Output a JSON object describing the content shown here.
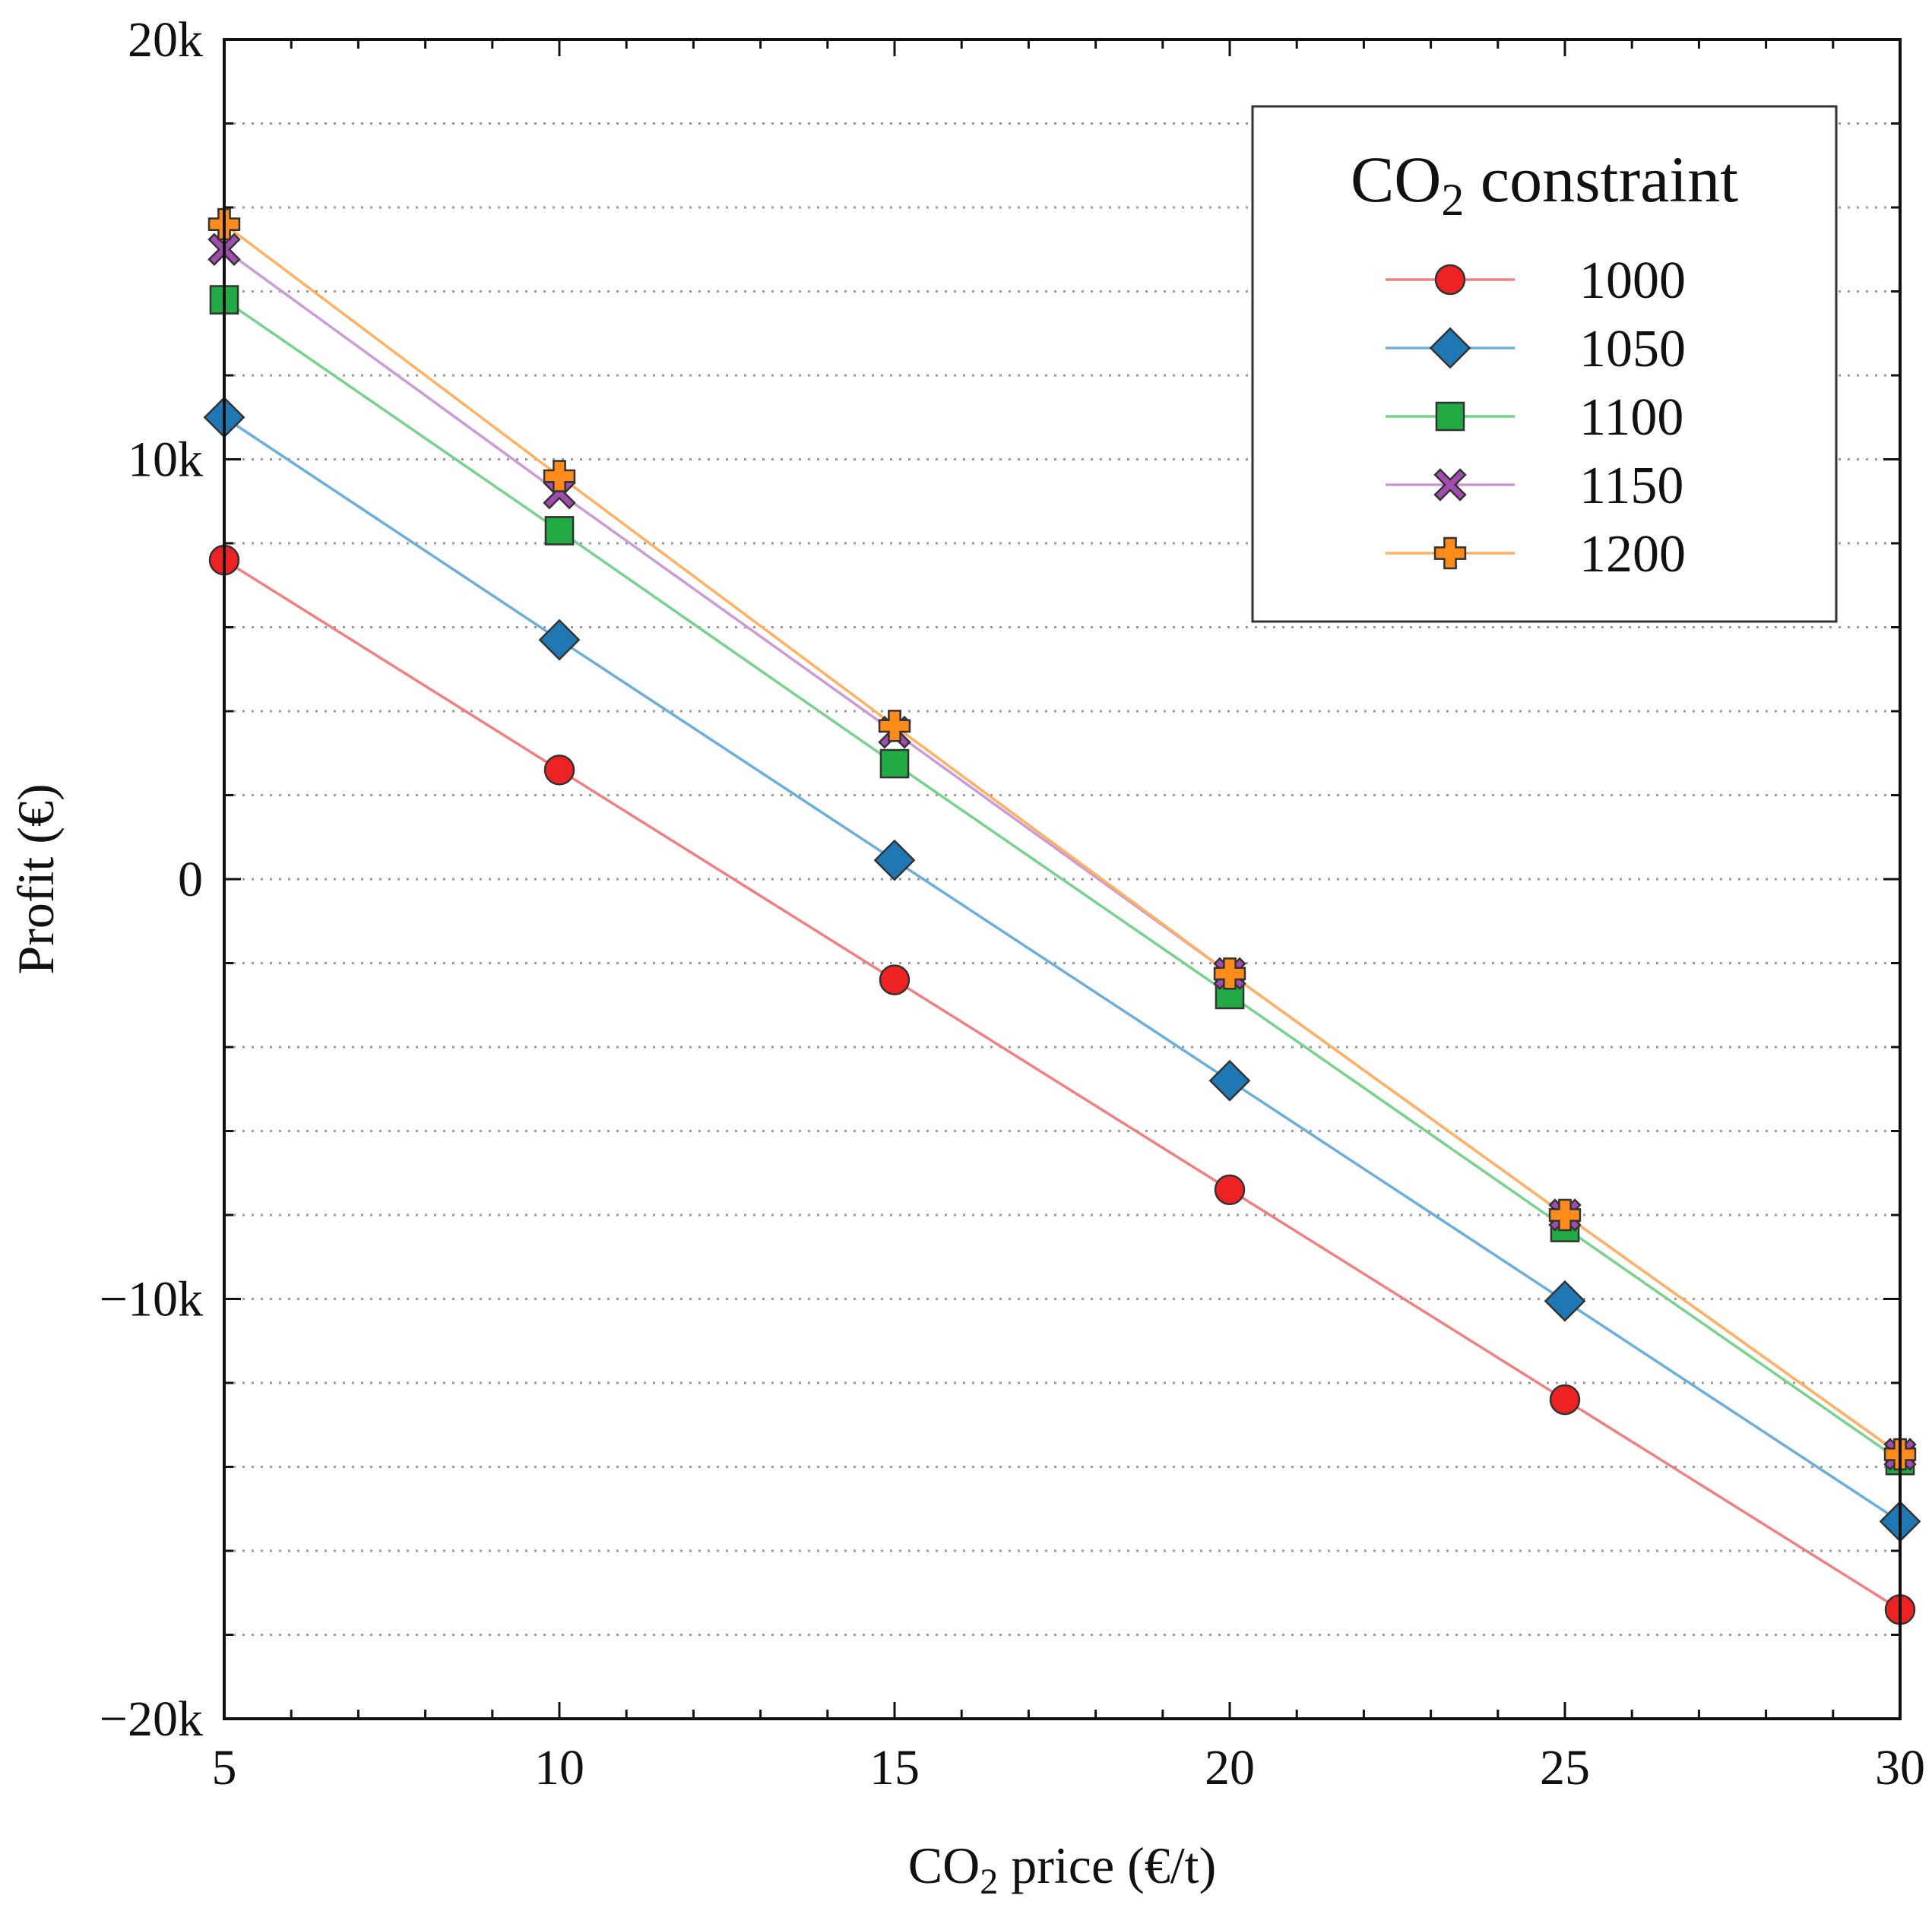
{
  "chart_data": {
    "type": "line",
    "title": "",
    "xlabel": "CO₂ price (€/t)",
    "xlabel_parts": {
      "pre": "CO",
      "sub": "2",
      "post": " price (€/t)"
    },
    "ylabel": "Profit (€)",
    "xlim": [
      5,
      30
    ],
    "ylim": [
      -20000,
      20000
    ],
    "x_ticks": [
      5,
      10,
      15,
      20,
      25,
      30
    ],
    "x_tick_labels": [
      "5",
      "10",
      "15",
      "20",
      "25",
      "30"
    ],
    "y_ticks": [
      -20000,
      -10000,
      0,
      10000,
      20000
    ],
    "y_tick_labels": [
      "−20k",
      "−10k",
      "0",
      "10k",
      "20k"
    ],
    "grid": "horizontal dotted",
    "legend": {
      "title": "CO₂ constraint",
      "title_parts": {
        "pre": "CO",
        "sub": "2",
        "post": " constraint"
      },
      "placement": "top-right"
    },
    "x": [
      5,
      10,
      15,
      20,
      25,
      30
    ],
    "series": [
      {
        "name": "1000",
        "color": "#f08080",
        "marker": "circle",
        "marker_fill": "#ee2222",
        "values": [
          7600,
          2600,
          -2400,
          -7400,
          -12400,
          -17400
        ]
      },
      {
        "name": "1050",
        "color": "#6aaedc",
        "marker": "diamond",
        "marker_fill": "#1f78b4",
        "values": [
          11000,
          5700,
          450,
          -4800,
          -10050,
          -15300
        ]
      },
      {
        "name": "1100",
        "color": "#77d28c",
        "marker": "square",
        "marker_fill": "#22aa44",
        "values": [
          13800,
          8300,
          2750,
          -2750,
          -8300,
          -13850
        ]
      },
      {
        "name": "1150",
        "color": "#cc9ad8",
        "marker": "x",
        "marker_fill": "#a14db0",
        "values": [
          15000,
          9200,
          3500,
          -2250,
          -8000,
          -13700
        ]
      },
      {
        "name": "1200",
        "color": "#ffb060",
        "marker": "plus",
        "marker_fill": "#ff8c1a",
        "values": [
          15600,
          9600,
          3650,
          -2250,
          -8000,
          -13700
        ]
      }
    ]
  }
}
